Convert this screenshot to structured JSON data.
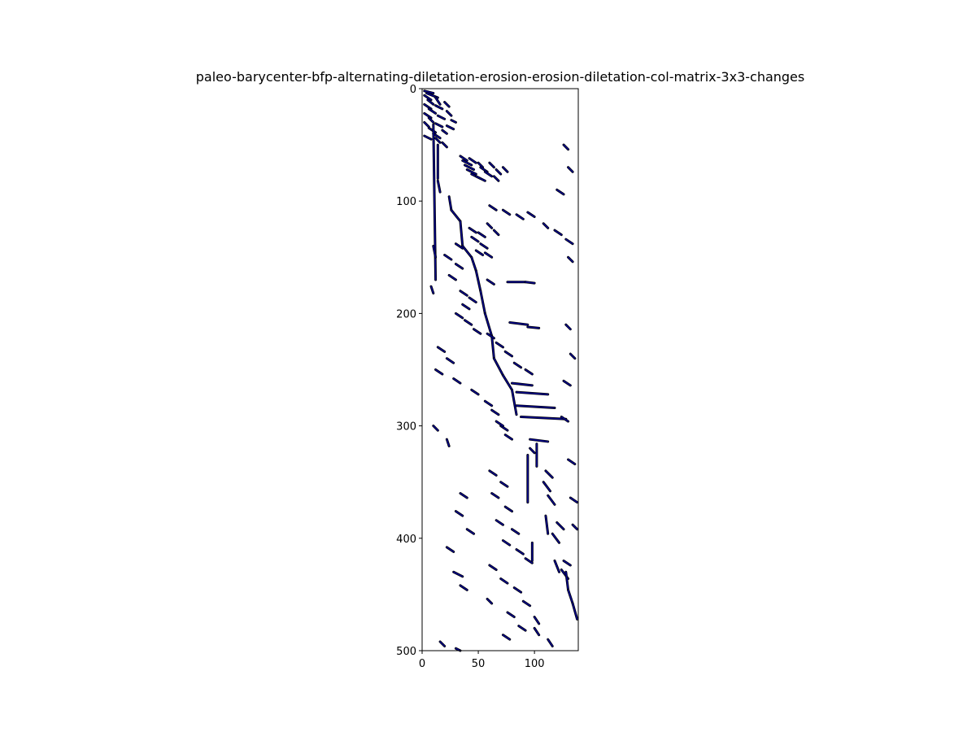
{
  "chart_data": {
    "type": "heatmap",
    "title": "paleo-barycenter-bfp-alternating-diletation-erosion-erosion-diletation-col-matrix-3x3-changes",
    "xlabel": "",
    "ylabel": "",
    "xlim": [
      0,
      139
    ],
    "ylim": [
      500,
      0
    ],
    "x_ticks": [
      0,
      50,
      100
    ],
    "y_ticks": [
      0,
      100,
      200,
      300,
      400,
      500
    ],
    "grid": false,
    "colors": {
      "mark": "#00008b",
      "edge": "#000000",
      "background": "#ffffff"
    },
    "segments": [
      [
        2,
        2,
        4,
        10
      ],
      [
        4,
        4,
        8,
        14
      ],
      [
        6,
        2,
        10,
        8
      ],
      [
        8,
        12,
        14,
        16
      ],
      [
        10,
        5,
        14,
        10
      ],
      [
        12,
        20,
        16,
        24
      ],
      [
        14,
        2,
        18,
        8
      ],
      [
        15,
        12,
        18,
        18
      ],
      [
        18,
        6,
        22,
        12
      ],
      [
        20,
        22,
        24,
        26
      ],
      [
        22,
        2,
        26,
        8
      ],
      [
        24,
        14,
        27,
        20
      ],
      [
        26,
        6,
        30,
        10
      ],
      [
        28,
        26,
        30,
        30
      ],
      [
        30,
        2,
        34,
        6
      ],
      [
        31,
        12,
        34,
        18
      ],
      [
        33,
        22,
        36,
        28
      ],
      [
        35,
        6,
        39,
        12
      ],
      [
        37,
        18,
        40,
        22
      ],
      [
        40,
        10,
        44,
        16
      ],
      [
        42,
        2,
        45,
        8
      ],
      [
        44,
        12,
        48,
        16
      ],
      [
        48,
        18,
        52,
        22
      ],
      [
        50,
        14,
        80,
        14
      ],
      [
        82,
        14,
        92,
        16
      ],
      [
        60,
        34,
        64,
        40
      ],
      [
        62,
        42,
        66,
        48
      ],
      [
        64,
        36,
        68,
        44
      ],
      [
        66,
        50,
        70,
        54
      ],
      [
        68,
        38,
        72,
        46
      ],
      [
        70,
        52,
        74,
        58
      ],
      [
        72,
        40,
        76,
        48
      ],
      [
        74,
        56,
        78,
        62
      ],
      [
        76,
        44,
        80,
        52
      ],
      [
        78,
        48,
        82,
        56
      ],
      [
        66,
        60,
        70,
        64
      ],
      [
        72,
        66,
        76,
        70
      ],
      [
        70,
        72,
        74,
        76
      ],
      [
        78,
        64,
        82,
        68
      ],
      [
        96,
        24,
        108,
        26
      ],
      [
        108,
        26,
        118,
        34
      ],
      [
        118,
        34,
        140,
        36
      ],
      [
        140,
        36,
        150,
        44
      ],
      [
        150,
        44,
        162,
        48
      ],
      [
        124,
        42,
        128,
        48
      ],
      [
        128,
        50,
        132,
        56
      ],
      [
        132,
        44,
        136,
        50
      ],
      [
        138,
        52,
        142,
        58
      ],
      [
        144,
        48,
        148,
        54
      ],
      [
        146,
        56,
        150,
        62
      ],
      [
        120,
        58,
        124,
        62
      ],
      [
        126,
        64,
        130,
        68
      ],
      [
        172,
        76,
        172,
        92
      ],
      [
        172,
        92,
        173,
        100
      ],
      [
        162,
        48,
        180,
        52
      ],
      [
        180,
        52,
        200,
        56
      ],
      [
        200,
        56,
        220,
        62
      ],
      [
        220,
        62,
        240,
        64
      ],
      [
        240,
        64,
        255,
        72
      ],
      [
        255,
        72,
        268,
        80
      ],
      [
        268,
        80,
        290,
        84
      ],
      [
        208,
        78,
        210,
        94
      ],
      [
        212,
        94,
        213,
        104
      ],
      [
        262,
        80,
        264,
        98
      ],
      [
        270,
        84,
        272,
        112
      ],
      [
        282,
        84,
        284,
        118
      ],
      [
        292,
        88,
        294,
        128
      ],
      [
        300,
        70,
        304,
        76
      ],
      [
        308,
        74,
        312,
        80
      ],
      [
        312,
        96,
        314,
        112
      ],
      [
        316,
        102,
        336,
        102
      ],
      [
        320,
        96,
        324,
        100
      ],
      [
        326,
        94,
        368,
        94
      ],
      [
        340,
        110,
        346,
        116
      ],
      [
        350,
        108,
        358,
        114
      ],
      [
        362,
        112,
        370,
        118
      ],
      [
        380,
        110,
        396,
        112
      ],
      [
        386,
        120,
        392,
        126
      ],
      [
        396,
        116,
        404,
        122
      ],
      [
        404,
        98,
        420,
        98
      ],
      [
        420,
        118,
        430,
        122
      ],
      [
        428,
        124,
        436,
        130
      ],
      [
        430,
        128,
        446,
        130
      ],
      [
        446,
        130,
        458,
        134
      ],
      [
        458,
        134,
        472,
        138
      ],
      [
        32,
        10,
        170,
        12
      ],
      [
        140,
        10,
        150,
        12
      ],
      [
        176,
        8,
        182,
        10
      ],
      [
        300,
        10,
        304,
        14
      ],
      [
        312,
        22,
        318,
        24
      ],
      [
        430,
        28,
        434,
        36
      ],
      [
        442,
        34,
        446,
        40
      ],
      [
        454,
        58,
        458,
        62
      ],
      [
        470,
        100,
        476,
        104
      ],
      [
        480,
        100,
        486,
        104
      ],
      [
        490,
        112,
        496,
        116
      ],
      [
        492,
        16,
        496,
        20
      ],
      [
        498,
        30,
        500,
        34
      ],
      [
        230,
        14,
        234,
        20
      ],
      [
        240,
        22,
        244,
        28
      ],
      [
        250,
        12,
        254,
        18
      ],
      [
        258,
        28,
        262,
        34
      ],
      [
        268,
        44,
        272,
        50
      ],
      [
        278,
        56,
        282,
        62
      ],
      [
        286,
        62,
        290,
        68
      ],
      [
        296,
        66,
        300,
        72
      ],
      [
        200,
        30,
        204,
        36
      ],
      [
        206,
        38,
        210,
        44
      ],
      [
        214,
        46,
        218,
        52
      ],
      [
        218,
        58,
        222,
        64
      ],
      [
        226,
        66,
        230,
        72
      ],
      [
        234,
        74,
        238,
        80
      ],
      [
        244,
        82,
        248,
        88
      ],
      [
        250,
        92,
        254,
        98
      ],
      [
        180,
        34,
        184,
        40
      ],
      [
        186,
        42,
        190,
        48
      ],
      [
        192,
        36,
        196,
        42
      ],
      [
        170,
        58,
        174,
        64
      ],
      [
        166,
        24,
        170,
        30
      ],
      [
        156,
        30,
        160,
        36
      ],
      [
        148,
        20,
        152,
        26
      ],
      [
        138,
        30,
        142,
        36
      ],
      [
        104,
        60,
        108,
        66
      ],
      [
        108,
        72,
        112,
        78
      ],
      [
        112,
        84,
        116,
        90
      ],
      [
        110,
        94,
        114,
        100
      ],
      [
        120,
        108,
        124,
        112
      ],
      [
        126,
        118,
        130,
        124
      ],
      [
        134,
        128,
        138,
        134
      ],
      [
        340,
        60,
        344,
        66
      ],
      [
        350,
        70,
        354,
        76
      ],
      [
        360,
        62,
        364,
        68
      ],
      [
        372,
        74,
        376,
        80
      ],
      [
        384,
        66,
        388,
        72
      ],
      [
        392,
        80,
        396,
        86
      ],
      [
        402,
        72,
        406,
        78
      ],
      [
        410,
        84,
        414,
        90
      ],
      [
        418,
        92,
        422,
        98
      ],
      [
        424,
        60,
        428,
        66
      ],
      [
        436,
        70,
        440,
        76
      ],
      [
        444,
        82,
        448,
        88
      ],
      [
        456,
        90,
        460,
        96
      ],
      [
        466,
        76,
        470,
        82
      ],
      [
        478,
        86,
        482,
        92
      ],
      [
        486,
        72,
        490,
        78
      ],
      [
        360,
        34,
        364,
        40
      ],
      [
        376,
        30,
        380,
        36
      ],
      [
        392,
        40,
        396,
        46
      ],
      [
        408,
        22,
        412,
        28
      ],
      [
        50,
        126,
        54,
        130
      ],
      [
        70,
        130,
        74,
        134
      ],
      [
        90,
        120,
        94,
        126
      ],
      [
        150,
        130,
        154,
        134
      ],
      [
        210,
        128,
        214,
        132
      ],
      [
        236,
        132,
        240,
        136
      ],
      [
        260,
        126,
        264,
        132
      ],
      [
        292,
        124,
        296,
        130
      ],
      [
        330,
        130,
        334,
        136
      ],
      [
        364,
        132,
        368,
        138
      ],
      [
        388,
        134,
        392,
        138
      ],
      [
        420,
        126,
        424,
        132
      ]
    ]
  }
}
